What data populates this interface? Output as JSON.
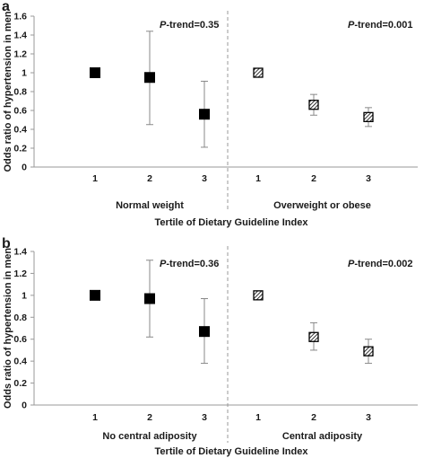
{
  "chart_data": [
    {
      "type": "scatter",
      "panel_label": "a",
      "ylabel": "Odds ratio of hypertension in men",
      "xlabel": "Tertile of Dietary Guideline Index",
      "ylim": [
        0,
        1.6
      ],
      "yticks": [
        "0",
        "0.2",
        "0.4",
        "0.6",
        "0.8",
        "1",
        "1.2",
        "1.4",
        "1.6"
      ],
      "grid": false,
      "legend": "none",
      "groups": [
        {
          "label": "Normal weight",
          "trend_prefix": "P",
          "trend_suffix": "-trend=0.35",
          "marker": "filled-square",
          "x": [
            "1",
            "2",
            "3"
          ],
          "values": [
            1.0,
            0.95,
            0.56
          ],
          "ci_low": [
            1.0,
            0.45,
            0.21
          ],
          "ci_high": [
            1.0,
            1.44,
            0.91
          ]
        },
        {
          "label": "Overweight or obese",
          "trend_prefix": "P",
          "trend_suffix": "-trend=0.001",
          "marker": "hatched-square",
          "x": [
            "1",
            "2",
            "3"
          ],
          "values": [
            1.0,
            0.66,
            0.53
          ],
          "ci_low": [
            1.0,
            0.55,
            0.43
          ],
          "ci_high": [
            1.0,
            0.77,
            0.63
          ]
        }
      ]
    },
    {
      "type": "scatter",
      "panel_label": "b",
      "ylabel": "Odds ratio of hypertension in men",
      "xlabel": "Tertile of Dietary Guideline Index",
      "ylim": [
        0,
        1.4
      ],
      "yticks": [
        "0",
        "0.2",
        "0.4",
        "0.6",
        "0.8",
        "1",
        "1.2",
        "1.4"
      ],
      "grid": false,
      "legend": "none",
      "groups": [
        {
          "label": "No central adiposity",
          "trend_prefix": "P",
          "trend_suffix": "-trend=0.36",
          "marker": "filled-square",
          "x": [
            "1",
            "2",
            "3"
          ],
          "values": [
            1.0,
            0.97,
            0.67
          ],
          "ci_low": [
            1.0,
            0.62,
            0.38
          ],
          "ci_high": [
            1.0,
            1.32,
            0.97
          ]
        },
        {
          "label": "Central adiposity",
          "trend_prefix": "P",
          "trend_suffix": "-trend=0.002",
          "marker": "hatched-square",
          "x": [
            "1",
            "2",
            "3"
          ],
          "values": [
            1.0,
            0.62,
            0.49
          ],
          "ci_low": [
            1.0,
            0.5,
            0.38
          ],
          "ci_high": [
            1.0,
            0.75,
            0.6
          ]
        }
      ]
    }
  ],
  "colors": {
    "marker": "#000000",
    "error_bar": "#888888",
    "axis": "#999999",
    "divider": "#999999"
  }
}
